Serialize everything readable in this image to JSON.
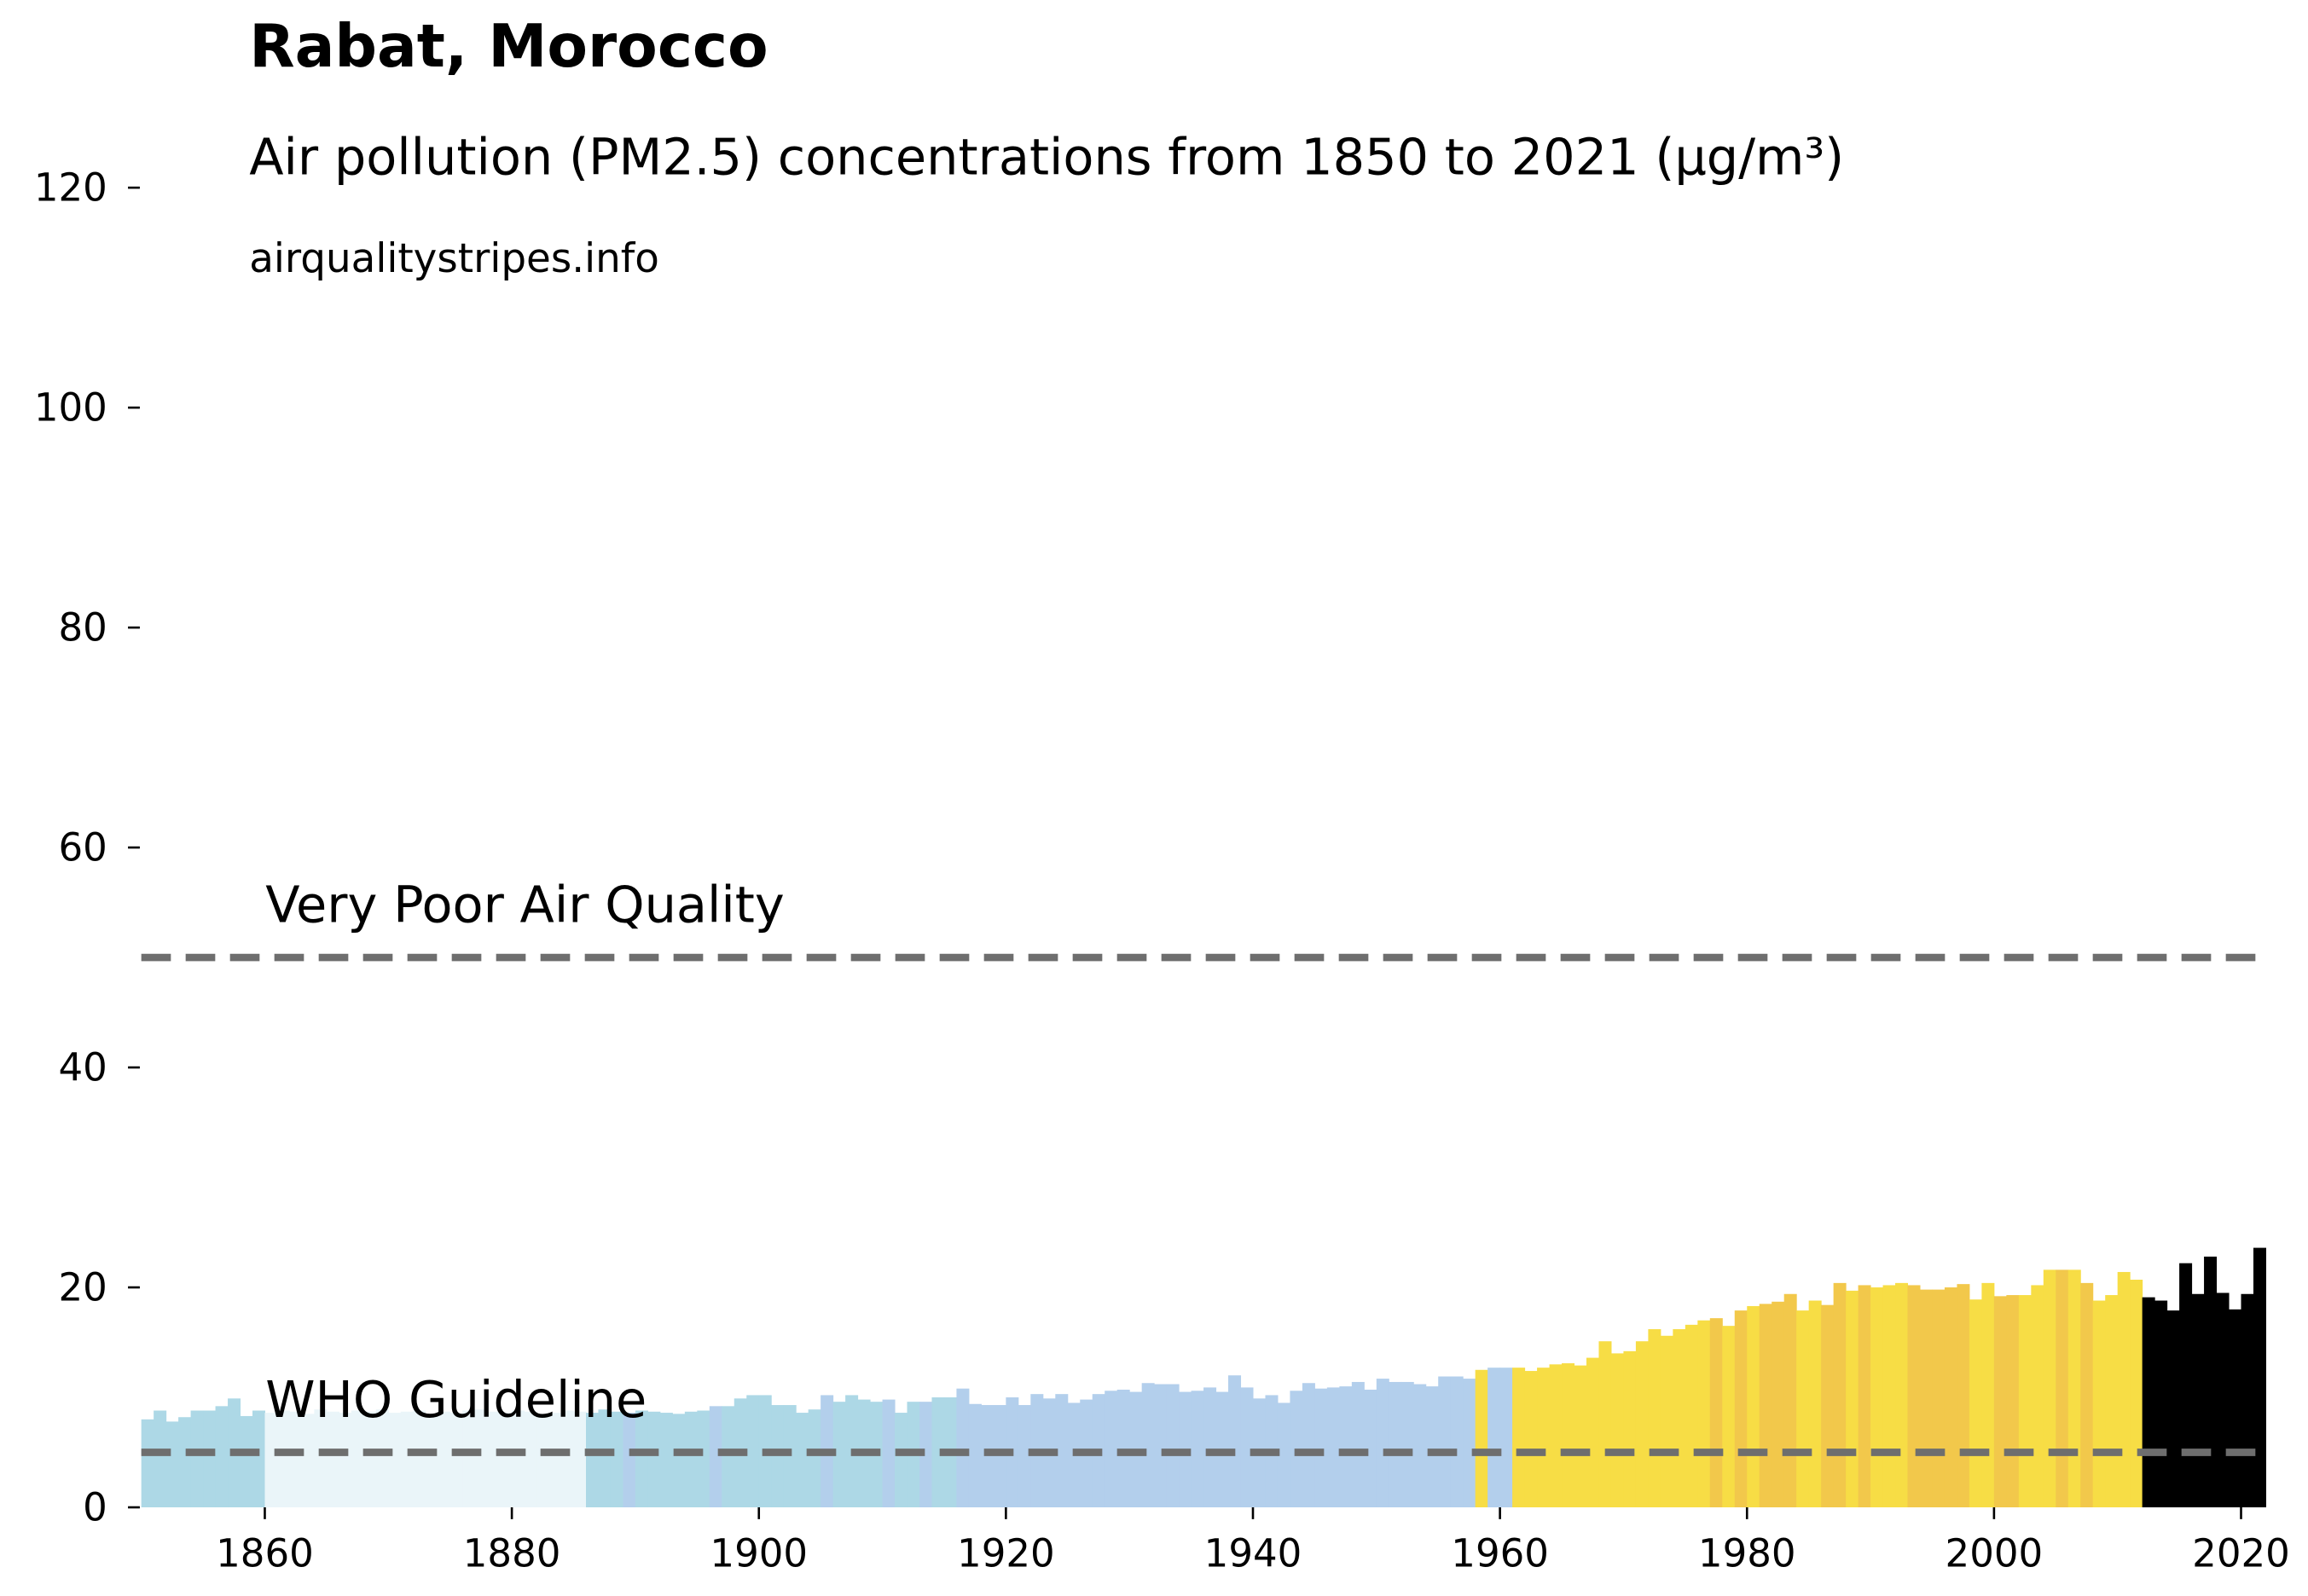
{
  "chart_data": {
    "type": "bar",
    "title": "Rabat, Morocco",
    "subtitle": "Air pollution (PM2.5) concentrations from 1850 to 2021 (µg/m³)",
    "source": "airqualitystripes.info",
    "x": [
      1850,
      1851,
      1852,
      1853,
      1854,
      1855,
      1856,
      1857,
      1858,
      1859,
      1860,
      1861,
      1862,
      1863,
      1864,
      1865,
      1866,
      1867,
      1868,
      1869,
      1870,
      1871,
      1872,
      1873,
      1874,
      1875,
      1876,
      1877,
      1878,
      1879,
      1880,
      1881,
      1882,
      1883,
      1884,
      1885,
      1886,
      1887,
      1888,
      1889,
      1890,
      1891,
      1892,
      1893,
      1894,
      1895,
      1896,
      1897,
      1898,
      1899,
      1900,
      1901,
      1902,
      1903,
      1904,
      1905,
      1906,
      1907,
      1908,
      1909,
      1910,
      1911,
      1912,
      1913,
      1914,
      1915,
      1916,
      1917,
      1918,
      1919,
      1920,
      1921,
      1922,
      1923,
      1924,
      1925,
      1926,
      1927,
      1928,
      1929,
      1930,
      1931,
      1932,
      1933,
      1934,
      1935,
      1936,
      1937,
      1938,
      1939,
      1940,
      1941,
      1942,
      1943,
      1944,
      1945,
      1946,
      1947,
      1948,
      1949,
      1950,
      1951,
      1952,
      1953,
      1954,
      1955,
      1956,
      1957,
      1958,
      1959,
      1960,
      1961,
      1962,
      1963,
      1964,
      1965,
      1966,
      1967,
      1968,
      1969,
      1970,
      1971,
      1972,
      1973,
      1974,
      1975,
      1976,
      1977,
      1978,
      1979,
      1980,
      1981,
      1982,
      1983,
      1984,
      1985,
      1986,
      1987,
      1988,
      1989,
      1990,
      1991,
      1992,
      1993,
      1994,
      1995,
      1996,
      1997,
      1998,
      1999,
      2000,
      2001,
      2002,
      2003,
      2004,
      2005,
      2006,
      2007,
      2008,
      2009,
      2010,
      2011,
      2012,
      2013,
      2014,
      2015,
      2016,
      2017,
      2018,
      2019,
      2020,
      2021
    ],
    "values": [
      8.0,
      8.8,
      7.8,
      8.2,
      8.8,
      8.8,
      9.2,
      9.9,
      8.3,
      8.8,
      8.6,
      8.8,
      8.7,
      8.5,
      8.9,
      8.7,
      8.6,
      8.8,
      8.7,
      8.9,
      8.6,
      8.7,
      8.8,
      8.5,
      8.7,
      8.6,
      8.8,
      8.9,
      8.7,
      8.6,
      8.8,
      8.7,
      8.5,
      8.6,
      8.8,
      8.7,
      8.6,
      8.9,
      8.7,
      8.6,
      8.8,
      8.7,
      8.6,
      8.5,
      8.7,
      8.8,
      9.2,
      9.2,
      9.9,
      10.2,
      10.2,
      9.3,
      9.3,
      8.6,
      8.9,
      10.2,
      9.6,
      10.2,
      9.8,
      9.6,
      9.8,
      8.6,
      9.6,
      9.6,
      10.0,
      10.0,
      10.8,
      9.4,
      9.3,
      9.3,
      10.0,
      9.3,
      10.3,
      9.9,
      10.3,
      9.5,
      9.8,
      10.3,
      10.6,
      10.7,
      10.5,
      11.3,
      11.2,
      11.2,
      10.5,
      10.6,
      10.9,
      10.5,
      12.0,
      10.9,
      9.9,
      10.2,
      9.5,
      10.6,
      11.3,
      10.8,
      10.9,
      11.0,
      11.4,
      10.7,
      11.7,
      11.4,
      11.4,
      11.2,
      11.0,
      11.9,
      11.9,
      11.7,
      12.5,
      12.7,
      12.7,
      12.7,
      12.4,
      12.7,
      13.0,
      13.1,
      12.9,
      13.6,
      15.1,
      14.0,
      14.2,
      15.1,
      16.2,
      15.6,
      16.2,
      16.6,
      17.0,
      17.2,
      16.5,
      17.9,
      18.3,
      18.5,
      18.7,
      19.4,
      17.9,
      18.8,
      18.4,
      20.4,
      19.7,
      20.2,
      20.0,
      20.2,
      20.4,
      20.2,
      19.8,
      19.8,
      20.0,
      20.3,
      18.9,
      20.4,
      19.2,
      19.3,
      19.3,
      20.2,
      21.6,
      21.6,
      21.6,
      20.4,
      18.8,
      19.3,
      21.4,
      20.7,
      19.1,
      18.8,
      17.9,
      22.2,
      19.4,
      22.8,
      19.5,
      18.0,
      19.4,
      23.6
    ],
    "colors": [
      "#add8e6",
      "#add8e6",
      "#add8e6",
      "#add8e6",
      "#add8e6",
      "#add8e6",
      "#add8e6",
      "#add8e6",
      "#add8e6",
      "#add8e6",
      "#eaf5f9",
      "#eaf5f9",
      "#eaf5f9",
      "#eaf5f9",
      "#eaf5f9",
      "#eaf5f9",
      "#eaf5f9",
      "#eaf5f9",
      "#eaf5f9",
      "#eaf5f9",
      "#eaf5f9",
      "#eaf5f9",
      "#eaf5f9",
      "#eaf5f9",
      "#eaf5f9",
      "#eaf5f9",
      "#eaf5f9",
      "#eaf5f9",
      "#eaf5f9",
      "#eaf5f9",
      "#eaf5f9",
      "#eaf5f9",
      "#eaf5f9",
      "#eaf5f9",
      "#eaf5f9",
      "#eaf5f9",
      "#add8e6",
      "#add8e6",
      "#add8e6",
      "#b3cfec",
      "#add8e6",
      "#add8e6",
      "#add8e6",
      "#add8e6",
      "#add8e6",
      "#add8e6",
      "#b3cfec",
      "#add8e6",
      "#add8e6",
      "#add8e6",
      "#add8e6",
      "#add8e6",
      "#add8e6",
      "#add8e6",
      "#add8e6",
      "#b3cfec",
      "#add8e6",
      "#add8e6",
      "#add8e6",
      "#add8e6",
      "#b3cfec",
      "#add8e6",
      "#add8e6",
      "#b3cfec",
      "#add8e6",
      "#add8e6",
      "#b3cfec",
      "#b3cfec",
      "#b3cfec",
      "#b3cfec",
      "#b3cfec",
      "#b3cfec",
      "#b3cfec",
      "#b3cfec",
      "#b3cfec",
      "#b3cfec",
      "#b3cfec",
      "#b3cfec",
      "#b3cfec",
      "#b3cfec",
      "#b3cfec",
      "#b3cfec",
      "#b3cfec",
      "#b3cfec",
      "#b3cfec",
      "#b3cfec",
      "#b3cfec",
      "#b3cfec",
      "#b3cfec",
      "#b3cfec",
      "#b3cfec",
      "#b3cfec",
      "#b3cfec",
      "#b3cfec",
      "#b3cfec",
      "#b3cfec",
      "#b3cfec",
      "#b3cfec",
      "#b3cfec",
      "#b3cfec",
      "#b3cfec",
      "#b3cfec",
      "#b3cfec",
      "#b3cfec",
      "#b3cfec",
      "#b3cfec",
      "#b3cfec",
      "#b3cfec",
      "#f7dd45",
      "#b3cfec",
      "#b3cfec",
      "#f7dd45",
      "#f7dd45",
      "#f7dd45",
      "#f7dd45",
      "#f7dd45",
      "#f7dd45",
      "#f7dd45",
      "#f7dd45",
      "#f7dd45",
      "#f7dd45",
      "#f7dd45",
      "#f7dd45",
      "#f7dd45",
      "#f7dd45",
      "#f7dd45",
      "#f7dd45",
      "#f2c84b",
      "#f7dd45",
      "#f2c84b",
      "#f7dd45",
      "#f2c84b",
      "#f2c84b",
      "#f2c84b",
      "#f7dd45",
      "#f7dd45",
      "#f2c84b",
      "#f2c84b",
      "#f7dd45",
      "#f2c84b",
      "#f7dd45",
      "#f7dd45",
      "#f7dd45",
      "#f2c84b",
      "#f2c84b",
      "#f2c84b",
      "#f2c84b",
      "#f2c84b",
      "#f7dd45",
      "#f7dd45",
      "#f2c84b",
      "#f2c84b",
      "#f7dd45",
      "#f7dd45",
      "#f7dd45",
      "#f2c84b",
      "#f7dd45",
      "#f2c84b",
      "#f7dd45",
      "#f7dd45",
      "#f7dd45",
      "#f7dd45"
    ],
    "hlines": [
      {
        "value": 5,
        "label": "WHO Guideline"
      },
      {
        "value": 50,
        "label": "Very Poor Air Quality"
      }
    ],
    "hline_color": "#6e6e6e",
    "xlim": [
      1850,
      2022
    ],
    "xticks": [
      1860,
      1880,
      1900,
      1920,
      1940,
      1960,
      1980,
      2000,
      2020
    ],
    "ylim": [
      0,
      120
    ],
    "yticks": [
      0,
      20,
      40,
      60,
      80,
      100,
      120
    ]
  }
}
